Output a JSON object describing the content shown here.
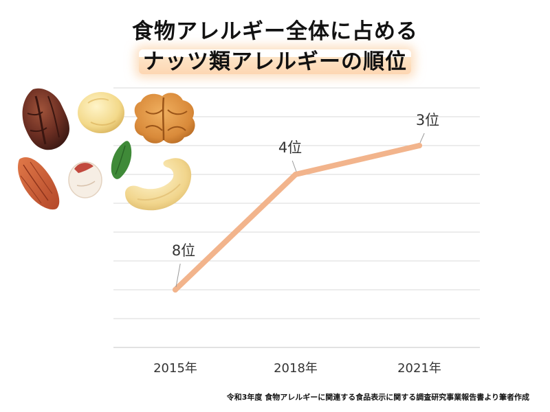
{
  "title": {
    "line1": "食物アレルギー全体に占める",
    "line2": "ナッツ類アレルギーの順位"
  },
  "source": "令和3年度 食物アレルギーに関連する食品表示に関する調査研究事業報告書より筆者作成",
  "colors": {
    "line": "#f2b48c",
    "grid": "#d9d9d9",
    "text": "#333333"
  },
  "illustration": [
    "pecan-icon",
    "macadamia-icon",
    "walnut-icon",
    "almond-icon",
    "pistachio-icon",
    "pumpkin-seed-icon",
    "cashew-icon"
  ],
  "chart_data": {
    "type": "line",
    "categories": [
      "2015年",
      "2018年",
      "2021年"
    ],
    "series": [
      {
        "values": [
          8,
          4,
          3
        ],
        "labels": [
          "8位",
          "4位",
          "3位"
        ]
      }
    ],
    "y_direction": "rank (1 at top)",
    "ylim": [
      10,
      0
    ],
    "grid": true
  }
}
